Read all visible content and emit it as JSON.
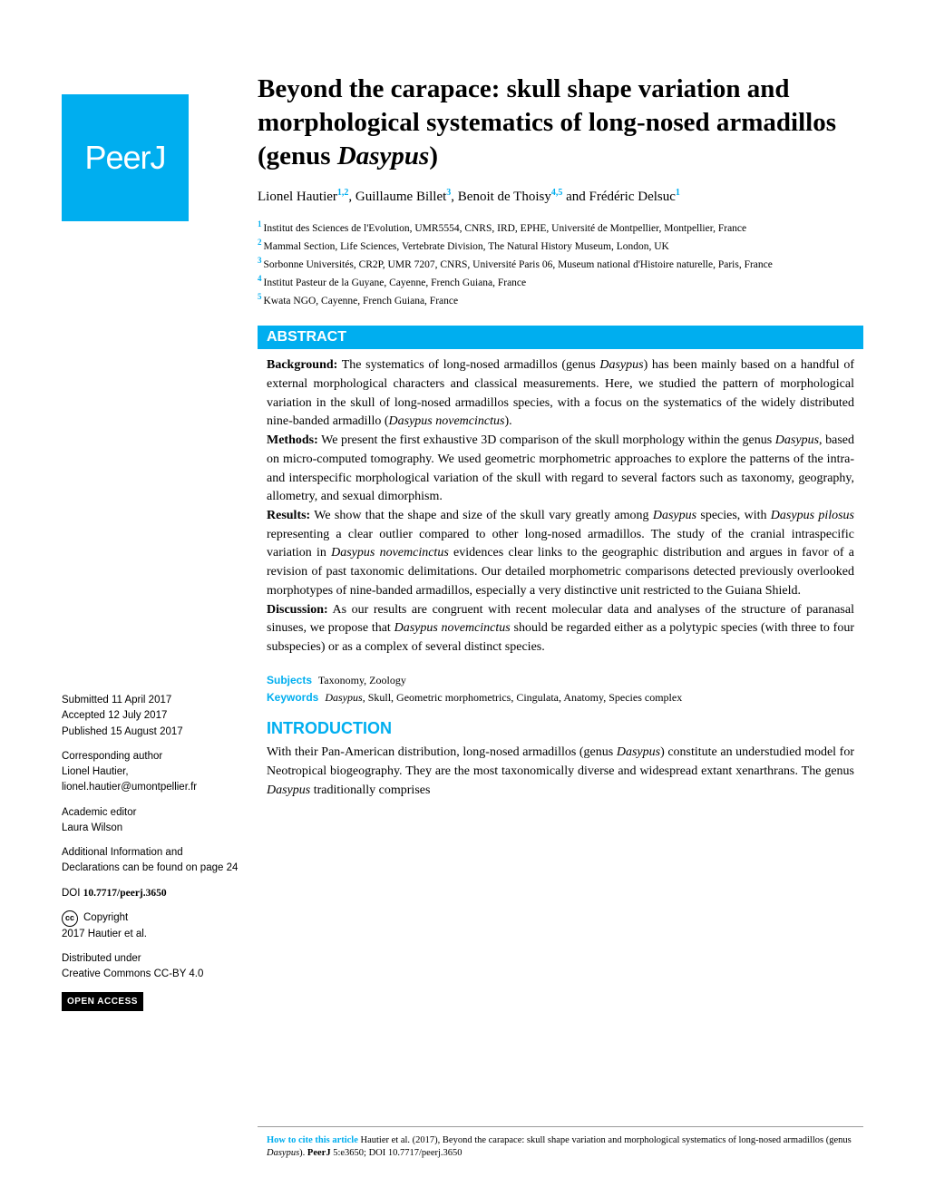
{
  "logo": "PeerJ",
  "title_pre": "Beyond the carapace: skull shape variation and morphological systematics of long-nosed armadillos (genus ",
  "title_italic": "Dasypus",
  "title_post": ")",
  "authors": [
    {
      "name": "Lionel Hautier",
      "sup": "1,2"
    },
    {
      "name": "Guillaume Billet",
      "sup": "3"
    },
    {
      "name": "Benoit de Thoisy",
      "sup": "4,5"
    },
    {
      "name": "Frédéric Delsuc",
      "sup": "1"
    }
  ],
  "author_sep": ", ",
  "author_and": " and ",
  "affiliations": [
    {
      "num": "1",
      "text": "Institut des Sciences de l'Evolution, UMR5554, CNRS, IRD, EPHE, Université de Montpellier, Montpellier, France"
    },
    {
      "num": "2",
      "text": "Mammal Section, Life Sciences, Vertebrate Division, The Natural History Museum, London, UK"
    },
    {
      "num": "3",
      "text": "Sorbonne Universités, CR2P, UMR 7207, CNRS, Université Paris 06, Museum national d'Histoire naturelle, Paris, France"
    },
    {
      "num": "4",
      "text": "Institut Pasteur de la Guyane, Cayenne, French Guiana, France"
    },
    {
      "num": "5",
      "text": "Kwata NGO, Cayenne, French Guiana, France"
    }
  ],
  "abstract_label": "ABSTRACT",
  "abstract": {
    "bg_label": "Background:",
    "bg_text_1": " The systematics of long-nosed armadillos (genus ",
    "bg_italic_1": "Dasypus",
    "bg_text_2": ") has been mainly based on a handful of external morphological characters and classical measurements. Here, we studied the pattern of morphological variation in the skull of long-nosed armadillos species, with a focus on the systematics of the widely distributed nine-banded armadillo (",
    "bg_italic_2": "Dasypus novemcinctus",
    "bg_text_3": ").",
    "me_label": "Methods:",
    "me_text_1": " We present the first exhaustive 3D comparison of the skull morphology within the genus ",
    "me_italic_1": "Dasypus",
    "me_text_2": ", based on micro-computed tomography. We used geometric morphometric approaches to explore the patterns of the intra- and interspecific morphological variation of the skull with regard to several factors such as taxonomy, geography, allometry, and sexual dimorphism.",
    "re_label": "Results:",
    "re_text_1": " We show that the shape and size of the skull vary greatly among ",
    "re_italic_1": "Dasypus",
    "re_text_2": " species, with ",
    "re_italic_2": "Dasypus pilosus",
    "re_text_3": " representing a clear outlier compared to other long-nosed armadillos. The study of the cranial intraspecific variation in ",
    "re_italic_3": "Dasypus novemcinctus",
    "re_text_4": " evidences clear links to the geographic distribution and argues in favor of a revision of past taxonomic delimitations. Our detailed morphometric comparisons detected previously overlooked morphotypes of nine-banded armadillos, especially a very distinctive unit restricted to the Guiana Shield.",
    "di_label": "Discussion:",
    "di_text_1": " As our results are congruent with recent molecular data and analyses of the structure of paranasal sinuses, we propose that ",
    "di_italic_1": "Dasypus novemcinctus",
    "di_text_2": " should be regarded either as a polytypic species (with three to four subspecies) or as a complex of several distinct species."
  },
  "subjects_label": "Subjects",
  "subjects_text": "Taxonomy, Zoology",
  "keywords_label": "Keywords",
  "keywords_pre": " ",
  "keywords_italic": "Dasypus",
  "keywords_post": ", Skull, Geometric morphometrics, Cingulata, Anatomy, Species complex",
  "intro_label": "INTRODUCTION",
  "intro_text_1": "With their Pan-American distribution, long-nosed armadillos (genus ",
  "intro_italic_1": "Dasypus",
  "intro_text_2": ") constitute an understudied model for Neotropical biogeography. They are the most taxonomically diverse and widespread extant xenarthrans. The genus ",
  "intro_italic_2": "Dasypus",
  "intro_text_3": " traditionally comprises",
  "sidebar": {
    "submitted_label": "Submitted ",
    "submitted_date": "11 April 2017",
    "accepted_label": "Accepted ",
    "accepted_date": "12 July 2017",
    "published_label": "Published ",
    "published_date": "15 August 2017",
    "corresponding_label": "Corresponding author",
    "corresponding_name": "Lionel Hautier,",
    "corresponding_email": "lionel.hautier@umontpellier.fr",
    "editor_label": "Academic editor",
    "editor_name": "Laura Wilson",
    "addl_info": "Additional Information and Declarations can be found on page 24",
    "doi_label": "DOI ",
    "doi_value": "10.7717/peerj.3650",
    "copyright_label": "Copyright",
    "copyright_text": "2017 Hautier et al.",
    "distributed_label": "Distributed under",
    "distributed_text": "Creative Commons CC-BY 4.0",
    "open_access": "OPEN ACCESS"
  },
  "citation": {
    "label": "How to cite this article ",
    "text_1": "Hautier et al. (2017), Beyond the carapace: skull shape variation and morphological systematics of long-nosed armadillos (genus ",
    "italic_1": "Dasypus",
    "text_2": "). ",
    "bold_1": "PeerJ ",
    "text_3": "5:e3650; DOI 10.7717/peerj.3650"
  },
  "colors": {
    "peerj_blue": "#00aeef",
    "black": "#000000",
    "white": "#ffffff"
  }
}
